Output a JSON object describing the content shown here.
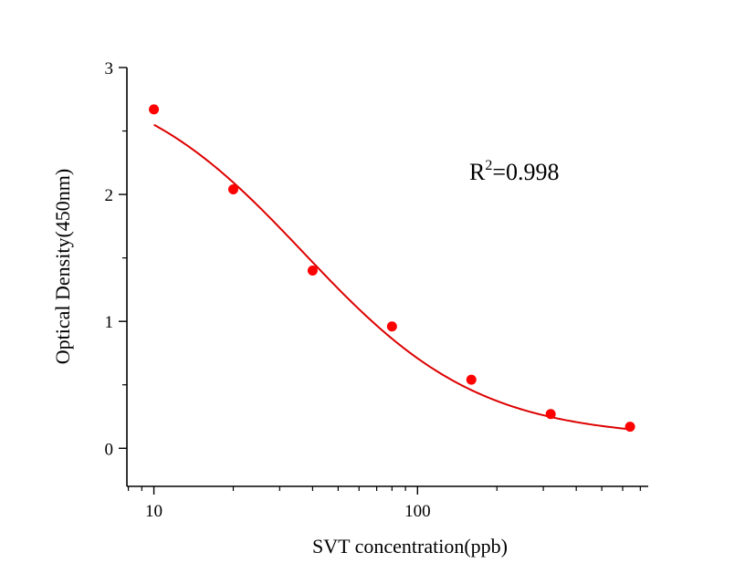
{
  "chart_data": {
    "type": "scatter",
    "title": "",
    "xlabel": "SVT concentration(ppb)",
    "ylabel": "Optical Density(450nm)",
    "x_scale": "log",
    "xlim": [
      7.9,
      750
    ],
    "ylim": [
      -0.3,
      3
    ],
    "x_ticks": [
      10,
      100
    ],
    "x_tick_labels": [
      "10",
      "100"
    ],
    "y_ticks": [
      0,
      1,
      2,
      3
    ],
    "y_tick_labels": [
      "0",
      "1",
      "2",
      "3"
    ],
    "y_minor_ticks": [
      0.5,
      1.5,
      2.5
    ],
    "grid": false,
    "legend": "none",
    "series": [
      {
        "name": "measured",
        "kind": "points",
        "color": "#ff0000",
        "x": [
          10,
          20,
          40,
          80,
          160,
          320,
          640
        ],
        "y": [
          2.67,
          2.04,
          1.4,
          0.96,
          0.54,
          0.27,
          0.17
        ]
      },
      {
        "name": "fit",
        "kind": "curve",
        "model": "4PL",
        "color": "#dd0000",
        "params": {
          "top": 3.0,
          "bottom": 0.08,
          "ec50": 37,
          "slope": 1.3
        },
        "x_range": [
          10,
          640
        ]
      }
    ],
    "annotations": [
      {
        "text": "R",
        "superscript": "2",
        "suffix": "=0.998",
        "position": "upper-right"
      }
    ]
  }
}
